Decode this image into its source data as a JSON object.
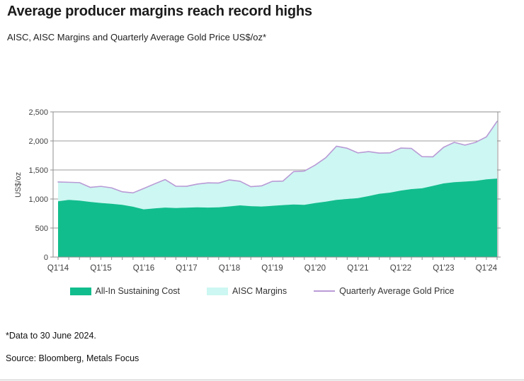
{
  "header": {
    "title": "Average producer margins reach record highs",
    "subtitle": "AISC, AISC Margins and Quarterly Average Gold Price US$/oz*"
  },
  "footer": {
    "footnote": "*Data to 30 June 2024.",
    "source": "Source: Bloomberg, Metals Focus"
  },
  "colors": {
    "aisc_fill": "#12bd8d",
    "margin_fill": "#cdf7f2",
    "gold_line": "#b99bd6",
    "grid": "#9e9e9e",
    "frame": "#8f8f8f",
    "tick": "#8f8f8f",
    "axis_text": "#3f3f3f"
  },
  "chart_data": {
    "type": "area",
    "title": "AISC, AISC Margins and Quarterly Average Gold Price US$/oz*",
    "xlabel": "",
    "ylabel": "US$/oz",
    "ylim": [
      0,
      2500
    ],
    "y_ticks": [
      0,
      500,
      1000,
      1500,
      2000,
      2500
    ],
    "grid": true,
    "legend_position": "bottom",
    "x_tick_label_every": 4,
    "categories": [
      "Q1'14",
      "Q2'14",
      "Q3'14",
      "Q4'14",
      "Q1'15",
      "Q2'15",
      "Q3'15",
      "Q4'15",
      "Q1'16",
      "Q2'16",
      "Q3'16",
      "Q4'16",
      "Q1'17",
      "Q2'17",
      "Q3'17",
      "Q4'17",
      "Q1'18",
      "Q2'18",
      "Q3'18",
      "Q4'18",
      "Q1'19",
      "Q2'19",
      "Q3'19",
      "Q4'19",
      "Q1'20",
      "Q2'20",
      "Q3'20",
      "Q4'20",
      "Q1'21",
      "Q2'21",
      "Q3'21",
      "Q4'21",
      "Q1'22",
      "Q2'22",
      "Q3'22",
      "Q4'22",
      "Q1'23",
      "Q2'23",
      "Q3'23",
      "Q4'23",
      "Q1'24",
      "Q2'24"
    ],
    "series": [
      {
        "name": "All-In Sustaining Cost",
        "type": "area",
        "values": [
          960,
          985,
          972,
          950,
          932,
          918,
          900,
          868,
          822,
          838,
          852,
          845,
          850,
          857,
          852,
          856,
          872,
          890,
          876,
          870,
          882,
          895,
          905,
          900,
          930,
          955,
          985,
          1000,
          1015,
          1050,
          1090,
          1110,
          1145,
          1170,
          1185,
          1225,
          1268,
          1290,
          1300,
          1312,
          1338,
          1352
        ]
      },
      {
        "name": "AISC Margins",
        "type": "area-band",
        "note": "band between All-In Sustaining Cost and Quarterly Average Gold Price",
        "values": [
          333,
          303,
          310,
          251,
          286,
          274,
          224,
          238,
          359,
          422,
          483,
          375,
          369,
          400,
          426,
          419,
          457,
          416,
          337,
          356,
          422,
          414,
          567,
          581,
          653,
          756,
          924,
          874,
          779,
          766,
          700,
          685,
          732,
          701,
          544,
          501,
          622,
          686,
          628,
          664,
          732,
          986
        ]
      },
      {
        "name": "Quarterly Average Gold Price",
        "type": "line",
        "values": [
          1293,
          1288,
          1282,
          1201,
          1218,
          1192,
          1124,
          1106,
          1181,
          1260,
          1335,
          1220,
          1219,
          1257,
          1278,
          1275,
          1329,
          1306,
          1213,
          1226,
          1304,
          1309,
          1472,
          1481,
          1583,
          1711,
          1909,
          1874,
          1794,
          1816,
          1790,
          1795,
          1877,
          1871,
          1729,
          1726,
          1890,
          1976,
          1928,
          1976,
          2070,
          2338
        ]
      }
    ]
  },
  "legend": {
    "items": [
      {
        "label": "All-In Sustaining Cost",
        "swatch": "green-rect"
      },
      {
        "label": "AISC Margins",
        "swatch": "cyan-rect"
      },
      {
        "label": "Quarterly Average Gold Price",
        "swatch": "purple-line"
      }
    ]
  }
}
